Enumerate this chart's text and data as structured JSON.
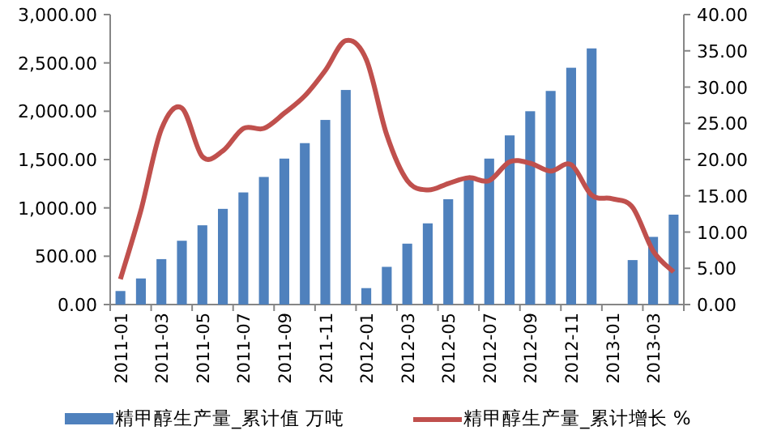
{
  "chart_data": {
    "type": "bar",
    "categories": [
      "2011-01",
      null,
      "2011-03",
      null,
      "2011-05",
      null,
      "2011-07",
      null,
      "2011-09",
      null,
      "2011-11",
      null,
      "2012-01",
      null,
      "2012-03",
      null,
      "2012-05",
      null,
      "2012-07",
      null,
      "2012-09",
      null,
      "2012-11",
      null,
      "2013-01",
      null,
      "2013-03",
      null
    ],
    "series": [
      {
        "name": "精甲醇生产量_累计值 万吨",
        "color": "#4f81bd",
        "values": [
          140,
          270,
          470,
          660,
          820,
          990,
          1160,
          1320,
          1510,
          1670,
          1910,
          2220,
          170,
          390,
          630,
          840,
          1090,
          1290,
          1510,
          1750,
          2000,
          2210,
          2450,
          2650,
          null,
          460,
          700,
          930
        ]
      },
      {
        "name": "精甲醇生产量_累计增长 %",
        "type": "line",
        "axis": "y2",
        "color": "#c0504d",
        "marker": "none",
        "values": [
          3.5,
          13.0,
          24.2,
          27.1,
          20.4,
          21.2,
          24.3,
          24.3,
          26.4,
          28.8,
          32.3,
          36.4,
          33.8,
          23.4,
          17.1,
          15.8,
          16.7,
          17.5,
          17.1,
          19.7,
          19.5,
          18.4,
          19.3,
          15.1,
          14.6,
          13.4,
          7.4,
          4.5
        ]
      }
    ],
    "ylim": [
      0,
      3000
    ],
    "yticks": [
      {
        "value": 0,
        "label": "0.00"
      },
      {
        "value": 500,
        "label": "500.00"
      },
      {
        "value": 1000,
        "label": "1,000.00"
      },
      {
        "value": 1500,
        "label": "1,500.00"
      },
      {
        "value": 2000,
        "label": "2,000.00"
      },
      {
        "value": 2500,
        "label": "2,500.00"
      },
      {
        "value": 3000,
        "label": "3,000.00"
      }
    ],
    "y2lim": [
      0,
      40
    ],
    "y2ticks": [
      {
        "value": 0,
        "label": "0.00"
      },
      {
        "value": 5,
        "label": "5.00"
      },
      {
        "value": 10,
        "label": "10.00"
      },
      {
        "value": 15,
        "label": "15.00"
      },
      {
        "value": 20,
        "label": "20.00"
      },
      {
        "value": 25,
        "label": "25.00"
      },
      {
        "value": 30,
        "label": "30.00"
      },
      {
        "value": 35,
        "label": "35.00"
      },
      {
        "value": 40,
        "label": "40.00"
      }
    ],
    "grid": false,
    "legend": "bottom"
  }
}
